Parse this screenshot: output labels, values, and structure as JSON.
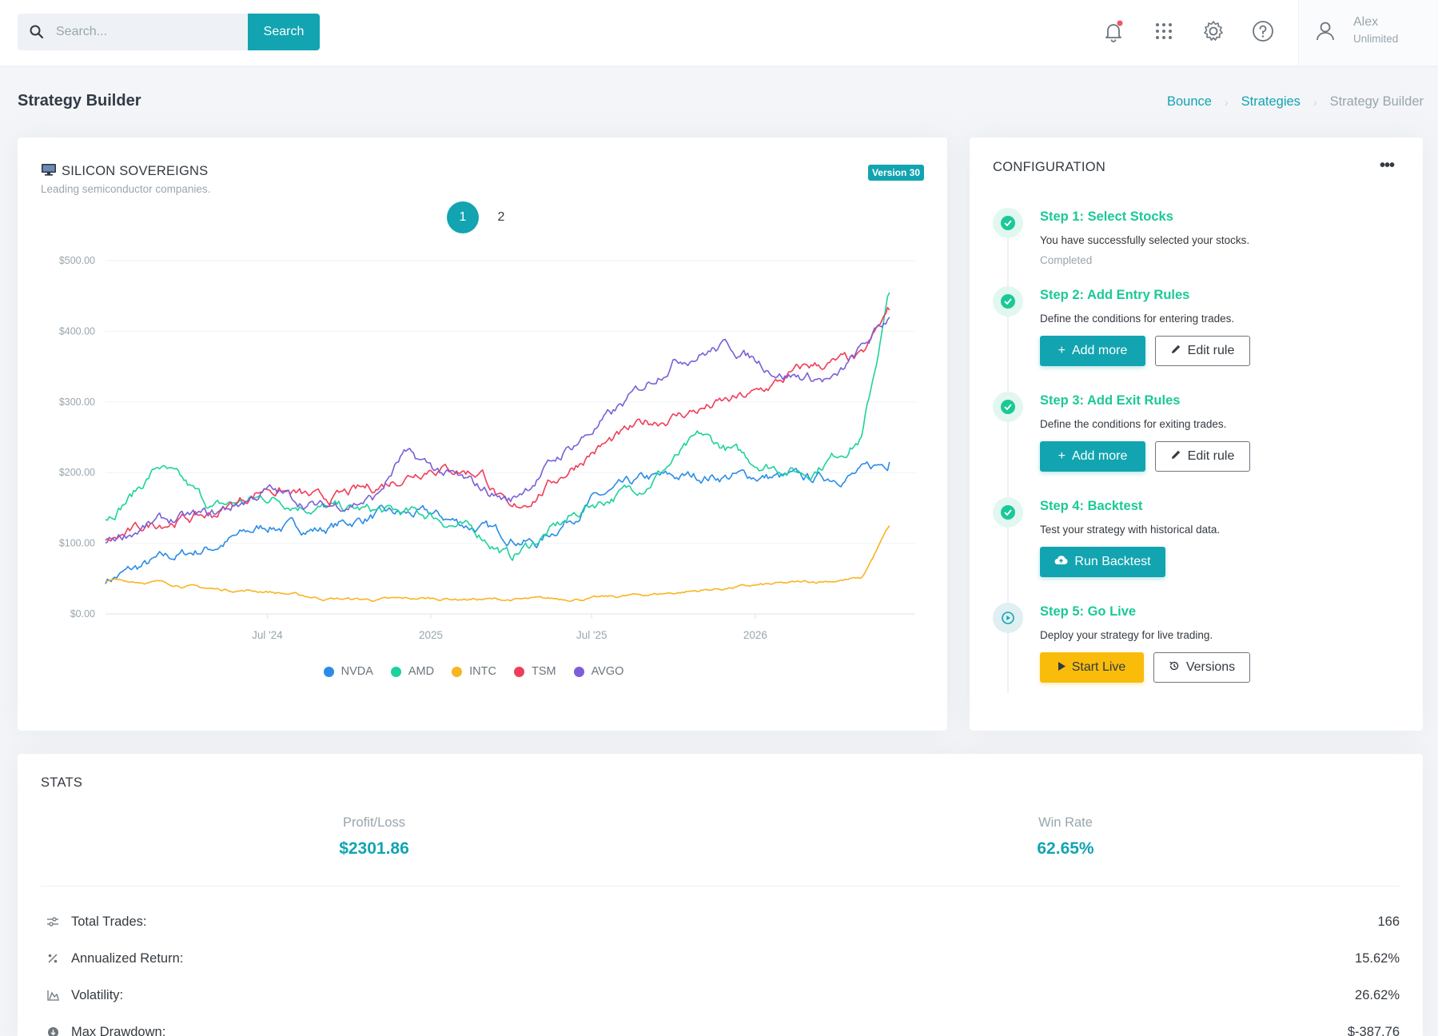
{
  "search": {
    "placeholder": "Search...",
    "button_label": "Search"
  },
  "user": {
    "name": "Alex",
    "plan": "Unlimited"
  },
  "icons": {
    "notification": "bell-icon",
    "apps": "grid-icon",
    "settings": "gear-icon",
    "help": "help-circle-icon",
    "user": "user-icon"
  },
  "page": {
    "title": "Strategy Builder"
  },
  "breadcrumb": [
    "Bounce",
    "Strategies",
    "Strategy Builder"
  ],
  "strategy": {
    "icon": "monitor-icon",
    "name": "SILICON SOVEREIGNS",
    "description": "Leading semiconductor companies.",
    "version": "Version 30",
    "pages": [
      "1",
      "2"
    ],
    "active_page": "1"
  },
  "chart_data": {
    "type": "line",
    "y_ticks": [
      "$500.00",
      "$400.00",
      "$300.00",
      "$200.00",
      "$100.00",
      "$0.00"
    ],
    "ylim": [
      0,
      500
    ],
    "x_ticks": [
      "Jul '24",
      "2025",
      "Jul '25",
      "2026"
    ],
    "x_range": [
      "2024-01-01",
      "2026-06-30"
    ],
    "grid": true,
    "legend_position": "bottom",
    "series": [
      {
        "name": "NVDA",
        "color": "#2a8ce8",
        "x": [
          "2024-01",
          "2024-03",
          "2024-05",
          "2024-07",
          "2024-09",
          "2024-11",
          "2025-01",
          "2025-03",
          "2025-05",
          "2025-07",
          "2025-09",
          "2025-11",
          "2026-01",
          "2026-03",
          "2026-05",
          "2026-06"
        ],
        "values": [
          48,
          75,
          95,
          125,
          120,
          140,
          140,
          120,
          100,
          160,
          190,
          195,
          195,
          190,
          200,
          215
        ]
      },
      {
        "name": "AMD",
        "color": "#1bd39c",
        "x": [
          "2024-01",
          "2024-02",
          "2024-03",
          "2024-05",
          "2024-07",
          "2024-09",
          "2024-11",
          "2025-01",
          "2025-03",
          "2025-04",
          "2025-07",
          "2025-09",
          "2025-11",
          "2026-01",
          "2026-03",
          "2026-05",
          "2026-06"
        ],
        "values": [
          135,
          170,
          210,
          150,
          165,
          150,
          145,
          140,
          110,
          80,
          155,
          185,
          250,
          215,
          200,
          250,
          455
        ]
      },
      {
        "name": "INTC",
        "color": "#f9b422",
        "x": [
          "2024-01",
          "2024-03",
          "2024-05",
          "2024-07",
          "2024-09",
          "2024-11",
          "2025-01",
          "2025-04",
          "2025-07",
          "2025-10",
          "2026-01",
          "2026-03",
          "2026-05",
          "2026-06"
        ],
        "values": [
          48,
          45,
          35,
          32,
          22,
          20,
          22,
          20,
          22,
          30,
          40,
          45,
          50,
          125
        ]
      },
      {
        "name": "TSM",
        "color": "#f03d5a",
        "x": [
          "2024-01",
          "2024-03",
          "2024-05",
          "2024-07",
          "2024-09",
          "2024-11",
          "2025-01",
          "2025-03",
          "2025-04",
          "2025-07",
          "2025-09",
          "2025-11",
          "2026-01",
          "2026-03",
          "2026-05",
          "2026-06"
        ],
        "values": [
          100,
          130,
          140,
          180,
          160,
          180,
          210,
          200,
          140,
          230,
          270,
          290,
          310,
          350,
          360,
          430
        ]
      },
      {
        "name": "AVGO",
        "color": "#7b5fd8",
        "x": [
          "2024-01",
          "2024-03",
          "2024-05",
          "2024-07",
          "2024-09",
          "2024-11",
          "2024-12",
          "2025-02",
          "2025-04",
          "2025-06",
          "2025-08",
          "2025-10",
          "2025-12",
          "2026-02",
          "2026-04",
          "2026-06"
        ],
        "values": [
          105,
          130,
          140,
          175,
          150,
          165,
          225,
          190,
          160,
          230,
          290,
          360,
          380,
          340,
          330,
          420
        ]
      }
    ]
  },
  "config": {
    "title": "CONFIGURATION",
    "steps": [
      {
        "title": "Step 1: Select Stocks",
        "description": "You have successfully selected your stocks.",
        "status": "Completed"
      },
      {
        "title": "Step 2: Add Entry Rules",
        "description": "Define the conditions for entering trades.",
        "primary": "Add more",
        "secondary": "Edit rule"
      },
      {
        "title": "Step 3: Add Exit Rules",
        "description": "Define the conditions for exiting trades.",
        "primary": "Add more",
        "secondary": "Edit rule"
      },
      {
        "title": "Step 4: Backtest",
        "description": "Test your strategy with historical data.",
        "primary": "Run Backtest"
      },
      {
        "title": "Step 5: Go Live",
        "description": "Deploy your strategy for live trading.",
        "primary": "Start Live",
        "secondary": "Versions"
      }
    ]
  },
  "stats": {
    "title": "STATS",
    "kpis": [
      {
        "label": "Profit/Loss",
        "value": "$2301.86"
      },
      {
        "label": "Win Rate",
        "value": "62.65%"
      }
    ],
    "rows": [
      {
        "label": "Total Trades:",
        "value": "166",
        "icon": "sliders-icon"
      },
      {
        "label": "Annualized Return:",
        "value": "15.62%",
        "icon": "percent-icon"
      },
      {
        "label": "Volatility:",
        "value": "26.62%",
        "icon": "chart-area-icon"
      },
      {
        "label": "Max Drawdown:",
        "value": "$-387.76",
        "icon": "arrow-circle-down-icon"
      }
    ]
  },
  "colors": {
    "accent": "#12a4b1",
    "success": "#1bc996",
    "warning": "#f9bc0b"
  }
}
